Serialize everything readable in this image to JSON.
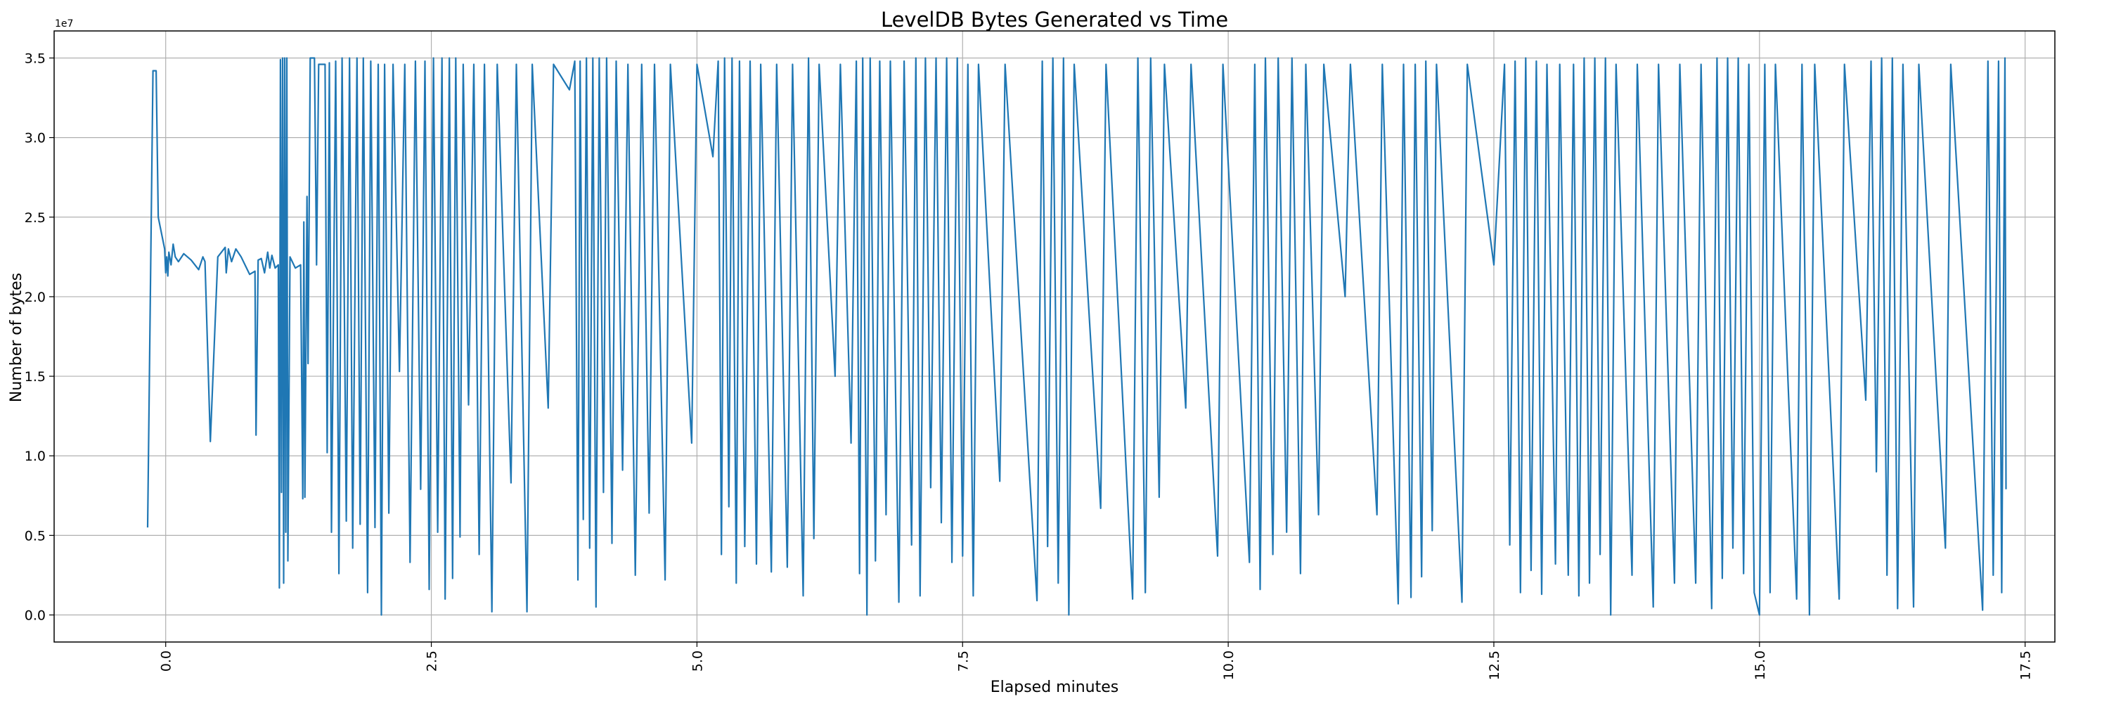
{
  "chart_data": {
    "type": "line",
    "title": "LevelDB Bytes Generated vs Time",
    "xlabel": "Elapsed minutes",
    "ylabel": "Number of bytes",
    "y_multiplier_label": "1e7",
    "y_unit_scale": 10000000,
    "xlim": [
      -1.05,
      17.78
    ],
    "ylim": [
      -0.17,
      3.67
    ],
    "x_ticks": [
      0.0,
      2.5,
      5.0,
      7.5,
      10.0,
      12.5,
      15.0,
      17.5
    ],
    "x_tick_labels": [
      "0.0",
      "2.5",
      "5.0",
      "7.5",
      "10.0",
      "12.5",
      "15.0",
      "17.5"
    ],
    "y_ticks": [
      0.0,
      0.5,
      1.0,
      1.5,
      2.0,
      2.5,
      3.0,
      3.5
    ],
    "y_tick_labels": [
      "0.0",
      "0.5",
      "1.0",
      "1.5",
      "2.0",
      "2.5",
      "3.0",
      "3.5"
    ],
    "grid": true,
    "series": [
      {
        "name": "bytes",
        "color": "#1f77b4",
        "points": [
          [
            -0.17,
            0.55
          ],
          [
            -0.12,
            3.42
          ],
          [
            -0.09,
            3.42
          ],
          [
            -0.07,
            2.5
          ],
          [
            -0.01,
            2.3
          ],
          [
            0.0,
            2.15
          ],
          [
            0.01,
            2.25
          ],
          [
            0.02,
            2.13
          ],
          [
            0.03,
            2.28
          ],
          [
            0.05,
            2.2
          ],
          [
            0.07,
            2.33
          ],
          [
            0.09,
            2.25
          ],
          [
            0.12,
            2.22
          ],
          [
            0.17,
            2.27
          ],
          [
            0.24,
            2.23
          ],
          [
            0.31,
            2.17
          ],
          [
            0.35,
            2.25
          ],
          [
            0.37,
            2.22
          ],
          [
            0.42,
            1.09
          ],
          [
            0.49,
            2.25
          ],
          [
            0.56,
            2.31
          ],
          [
            0.57,
            2.15
          ],
          [
            0.59,
            2.3
          ],
          [
            0.62,
            2.22
          ],
          [
            0.66,
            2.3
          ],
          [
            0.71,
            2.25
          ],
          [
            0.79,
            2.14
          ],
          [
            0.84,
            2.16
          ],
          [
            0.85,
            1.13
          ],
          [
            0.87,
            2.23
          ],
          [
            0.9,
            2.24
          ],
          [
            0.93,
            2.15
          ],
          [
            0.96,
            2.28
          ],
          [
            0.98,
            2.18
          ],
          [
            1.0,
            2.26
          ],
          [
            1.03,
            2.18
          ],
          [
            1.06,
            2.2
          ],
          [
            1.07,
            0.17
          ],
          [
            1.08,
            3.49
          ],
          [
            1.09,
            0.77
          ],
          [
            1.1,
            3.5
          ],
          [
            1.11,
            0.2
          ],
          [
            1.12,
            3.5
          ],
          [
            1.13,
            0.52
          ],
          [
            1.14,
            3.5
          ],
          [
            1.15,
            0.34
          ],
          [
            1.17,
            2.25
          ],
          [
            1.22,
            2.18
          ],
          [
            1.27,
            2.2
          ],
          [
            1.29,
            0.73
          ],
          [
            1.3,
            2.47
          ],
          [
            1.31,
            0.74
          ],
          [
            1.33,
            2.63
          ],
          [
            1.34,
            1.58
          ],
          [
            1.36,
            3.5
          ],
          [
            1.4,
            3.5
          ],
          [
            1.42,
            2.2
          ],
          [
            1.44,
            3.46
          ],
          [
            1.5,
            3.46
          ],
          [
            1.52,
            1.02
          ],
          [
            1.54,
            3.47
          ],
          [
            1.56,
            0.52
          ],
          [
            1.6,
            3.48
          ],
          [
            1.63,
            0.26
          ],
          [
            1.66,
            3.5
          ],
          [
            1.7,
            0.59
          ],
          [
            1.73,
            3.5
          ],
          [
            1.76,
            0.42
          ],
          [
            1.8,
            3.5
          ],
          [
            1.83,
            0.57
          ],
          [
            1.86,
            3.5
          ],
          [
            1.9,
            0.14
          ],
          [
            1.93,
            3.48
          ],
          [
            1.97,
            0.55
          ],
          [
            2.0,
            3.46
          ],
          [
            2.03,
            0.0
          ],
          [
            2.06,
            3.46
          ],
          [
            2.1,
            0.64
          ],
          [
            2.14,
            3.46
          ],
          [
            2.2,
            1.53
          ],
          [
            2.25,
            3.46
          ],
          [
            2.3,
            0.33
          ],
          [
            2.35,
            3.48
          ],
          [
            2.4,
            0.79
          ],
          [
            2.44,
            3.48
          ],
          [
            2.48,
            0.16
          ],
          [
            2.52,
            3.5
          ],
          [
            2.56,
            0.52
          ],
          [
            2.6,
            3.5
          ],
          [
            2.63,
            0.1
          ],
          [
            2.67,
            3.5
          ],
          [
            2.7,
            0.23
          ],
          [
            2.73,
            3.5
          ],
          [
            2.77,
            0.49
          ],
          [
            2.8,
            3.46
          ],
          [
            2.85,
            1.32
          ],
          [
            2.9,
            3.46
          ],
          [
            2.95,
            0.38
          ],
          [
            3.0,
            3.46
          ],
          [
            3.07,
            0.02
          ],
          [
            3.12,
            3.46
          ],
          [
            3.25,
            0.83
          ],
          [
            3.3,
            3.46
          ],
          [
            3.4,
            0.02
          ],
          [
            3.45,
            3.46
          ],
          [
            3.6,
            1.3
          ],
          [
            3.65,
            3.46
          ],
          [
            3.8,
            3.3
          ],
          [
            3.85,
            3.48
          ],
          [
            3.88,
            0.22
          ],
          [
            3.9,
            3.48
          ],
          [
            3.93,
            0.6
          ],
          [
            3.96,
            3.5
          ],
          [
            3.99,
            0.42
          ],
          [
            4.02,
            3.5
          ],
          [
            4.05,
            0.05
          ],
          [
            4.08,
            3.5
          ],
          [
            4.12,
            0.77
          ],
          [
            4.15,
            3.5
          ],
          [
            4.2,
            0.45
          ],
          [
            4.24,
            3.48
          ],
          [
            4.3,
            0.91
          ],
          [
            4.35,
            3.46
          ],
          [
            4.42,
            0.25
          ],
          [
            4.48,
            3.46
          ],
          [
            4.55,
            0.64
          ],
          [
            4.6,
            3.46
          ],
          [
            4.7,
            0.22
          ],
          [
            4.75,
            3.46
          ],
          [
            4.95,
            1.08
          ],
          [
            5.0,
            3.46
          ],
          [
            5.15,
            2.88
          ],
          [
            5.2,
            3.48
          ],
          [
            5.23,
            0.38
          ],
          [
            5.26,
            3.5
          ],
          [
            5.3,
            0.68
          ],
          [
            5.33,
            3.5
          ],
          [
            5.37,
            0.2
          ],
          [
            5.4,
            3.48
          ],
          [
            5.45,
            0.43
          ],
          [
            5.5,
            3.48
          ],
          [
            5.56,
            0.32
          ],
          [
            5.6,
            3.46
          ],
          [
            5.7,
            0.27
          ],
          [
            5.75,
            3.46
          ],
          [
            5.85,
            0.3
          ],
          [
            5.9,
            3.46
          ],
          [
            6.0,
            0.12
          ],
          [
            6.05,
            3.5
          ],
          [
            6.1,
            0.48
          ],
          [
            6.15,
            3.46
          ],
          [
            6.3,
            1.5
          ],
          [
            6.35,
            3.46
          ],
          [
            6.45,
            1.08
          ],
          [
            6.5,
            3.48
          ],
          [
            6.53,
            0.26
          ],
          [
            6.56,
            3.5
          ],
          [
            6.6,
            0.0
          ],
          [
            6.63,
            3.5
          ],
          [
            6.68,
            0.34
          ],
          [
            6.72,
            3.48
          ],
          [
            6.78,
            0.63
          ],
          [
            6.82,
            3.48
          ],
          [
            6.9,
            0.08
          ],
          [
            6.95,
            3.48
          ],
          [
            7.02,
            0.44
          ],
          [
            7.06,
            3.5
          ],
          [
            7.1,
            0.12
          ],
          [
            7.15,
            3.5
          ],
          [
            7.2,
            0.8
          ],
          [
            7.25,
            3.5
          ],
          [
            7.3,
            0.58
          ],
          [
            7.35,
            3.5
          ],
          [
            7.4,
            0.33
          ],
          [
            7.45,
            3.5
          ],
          [
            7.5,
            0.37
          ],
          [
            7.55,
            3.46
          ],
          [
            7.6,
            0.12
          ],
          [
            7.65,
            3.46
          ],
          [
            7.85,
            0.84
          ],
          [
            7.9,
            3.46
          ],
          [
            8.2,
            0.09
          ],
          [
            8.25,
            3.48
          ],
          [
            8.3,
            0.43
          ],
          [
            8.35,
            3.5
          ],
          [
            8.4,
            0.2
          ],
          [
            8.45,
            3.5
          ],
          [
            8.5,
            0.0
          ],
          [
            8.55,
            3.46
          ],
          [
            8.8,
            0.67
          ],
          [
            8.85,
            3.46
          ],
          [
            9.1,
            0.1
          ],
          [
            9.15,
            3.5
          ],
          [
            9.22,
            0.14
          ],
          [
            9.27,
            3.5
          ],
          [
            9.35,
            0.74
          ],
          [
            9.4,
            3.46
          ],
          [
            9.6,
            1.3
          ],
          [
            9.65,
            3.46
          ],
          [
            9.9,
            0.37
          ],
          [
            9.95,
            3.46
          ],
          [
            10.2,
            0.33
          ],
          [
            10.25,
            3.46
          ],
          [
            10.3,
            0.16
          ],
          [
            10.35,
            3.5
          ],
          [
            10.42,
            0.38
          ],
          [
            10.47,
            3.5
          ],
          [
            10.55,
            0.52
          ],
          [
            10.6,
            3.5
          ],
          [
            10.68,
            0.26
          ],
          [
            10.73,
            3.46
          ],
          [
            10.85,
            0.63
          ],
          [
            10.9,
            3.46
          ],
          [
            11.1,
            2.0
          ],
          [
            11.15,
            3.46
          ],
          [
            11.4,
            0.63
          ],
          [
            11.45,
            3.46
          ],
          [
            11.6,
            0.07
          ],
          [
            11.65,
            3.46
          ],
          [
            11.72,
            0.11
          ],
          [
            11.76,
            3.46
          ],
          [
            11.82,
            0.24
          ],
          [
            11.86,
            3.48
          ],
          [
            11.92,
            0.53
          ],
          [
            11.96,
            3.46
          ],
          [
            12.2,
            0.08
          ],
          [
            12.25,
            3.46
          ],
          [
            12.5,
            2.2
          ],
          [
            12.6,
            3.46
          ],
          [
            12.65,
            0.44
          ],
          [
            12.7,
            3.48
          ],
          [
            12.75,
            0.14
          ],
          [
            12.8,
            3.5
          ],
          [
            12.85,
            0.28
          ],
          [
            12.9,
            3.48
          ],
          [
            12.95,
            0.13
          ],
          [
            13.0,
            3.46
          ],
          [
            13.08,
            0.32
          ],
          [
            13.12,
            3.46
          ],
          [
            13.2,
            0.25
          ],
          [
            13.25,
            3.46
          ],
          [
            13.3,
            0.12
          ],
          [
            13.35,
            3.5
          ],
          [
            13.4,
            0.2
          ],
          [
            13.45,
            3.5
          ],
          [
            13.5,
            0.38
          ],
          [
            13.55,
            3.5
          ],
          [
            13.6,
            0.0
          ],
          [
            13.65,
            3.46
          ],
          [
            13.8,
            0.25
          ],
          [
            13.85,
            3.46
          ],
          [
            14.0,
            0.05
          ],
          [
            14.05,
            3.46
          ],
          [
            14.2,
            0.2
          ],
          [
            14.25,
            3.46
          ],
          [
            14.4,
            0.2
          ],
          [
            14.45,
            3.46
          ],
          [
            14.55,
            0.04
          ],
          [
            14.6,
            3.5
          ],
          [
            14.65,
            0.23
          ],
          [
            14.7,
            3.5
          ],
          [
            14.75,
            0.42
          ],
          [
            14.8,
            3.5
          ],
          [
            14.85,
            0.26
          ],
          [
            14.9,
            3.46
          ],
          [
            14.95,
            0.14
          ],
          [
            15.0,
            0.0
          ],
          [
            15.05,
            3.46
          ],
          [
            15.1,
            0.14
          ],
          [
            15.15,
            3.46
          ],
          [
            15.35,
            0.1
          ],
          [
            15.4,
            3.46
          ],
          [
            15.47,
            0.0
          ],
          [
            15.52,
            3.46
          ],
          [
            15.75,
            0.1
          ],
          [
            15.8,
            3.46
          ],
          [
            16.0,
            1.35
          ],
          [
            16.05,
            3.48
          ],
          [
            16.1,
            0.9
          ],
          [
            16.15,
            3.5
          ],
          [
            16.2,
            0.25
          ],
          [
            16.25,
            3.5
          ],
          [
            16.3,
            0.04
          ],
          [
            16.35,
            3.46
          ],
          [
            16.45,
            0.05
          ],
          [
            16.5,
            3.46
          ],
          [
            16.75,
            0.42
          ],
          [
            16.8,
            3.46
          ],
          [
            17.1,
            0.03
          ],
          [
            17.15,
            3.48
          ],
          [
            17.2,
            0.25
          ],
          [
            17.25,
            3.48
          ],
          [
            17.28,
            0.14
          ],
          [
            17.31,
            3.5
          ],
          [
            17.32,
            0.79
          ]
        ]
      }
    ]
  }
}
